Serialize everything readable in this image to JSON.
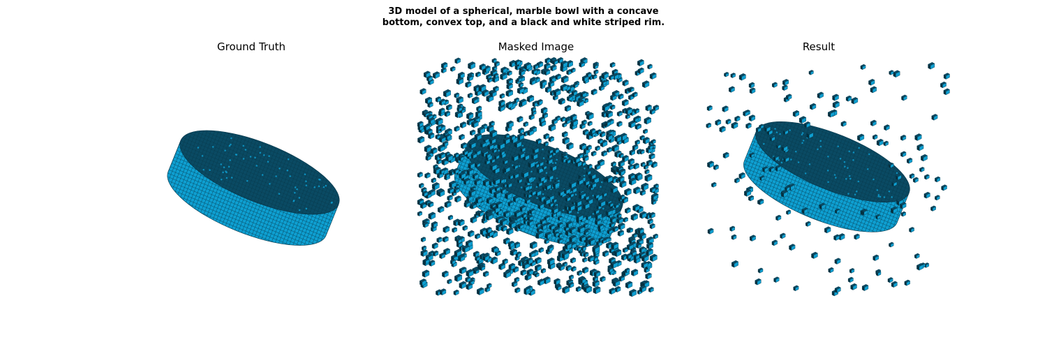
{
  "figure": {
    "title_line1": "3D model of a spherical, marble bowl with a concave",
    "title_line2": "bottom, convex top, and a black and white striped rim."
  },
  "panels": [
    {
      "title": "Ground Truth"
    },
    {
      "title": "Masked Image"
    },
    {
      "title": "Result"
    }
  ],
  "colors": {
    "voxel_side": "#0e9fd1",
    "voxel_top": "#0a4a63",
    "voxel_dark": "#05303f",
    "voxel_edge": "#06374a"
  }
}
